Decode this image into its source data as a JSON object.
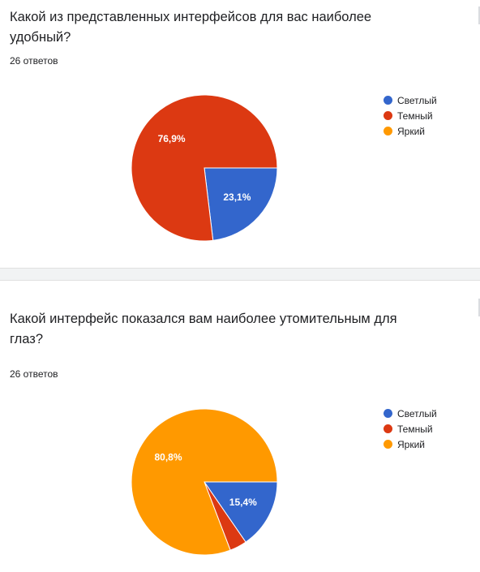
{
  "colors": {
    "light": "#3366cc",
    "dark": "#dc3912",
    "bright": "#ff9900"
  },
  "questions": [
    {
      "title": "Какой из представленных интерфейсов для вас наиболее удобный?",
      "count": "26 ответов",
      "legend": [
        "Светлый",
        "Темный",
        "Яркий"
      ]
    },
    {
      "title": "Какой интерфейс показался вам наиболее утомительным для глаз?",
      "count": "26 ответов",
      "legend": [
        "Светлый",
        "Темный",
        "Яркий"
      ]
    }
  ],
  "chart_data": [
    {
      "type": "pie",
      "title": "Какой из представленных интерфейсов для вас наиболее удобный?",
      "labels": [
        "Светлый",
        "Темный",
        "Яркий"
      ],
      "values": [
        23.1,
        76.9,
        0
      ],
      "data_labels": [
        "23,1%",
        "76,9%",
        ""
      ],
      "colors": [
        "#3366cc",
        "#dc3912",
        "#ff9900"
      ],
      "legend": "right"
    },
    {
      "type": "pie",
      "title": "Какой интерфейс показался вам наиболее утомительным для глаз?",
      "labels": [
        "Светлый",
        "Темный",
        "Яркий"
      ],
      "values": [
        15.4,
        3.8,
        80.8
      ],
      "data_labels": [
        "15,4%",
        "",
        "80,8%"
      ],
      "colors": [
        "#3366cc",
        "#dc3912",
        "#ff9900"
      ],
      "legend": "right"
    }
  ]
}
